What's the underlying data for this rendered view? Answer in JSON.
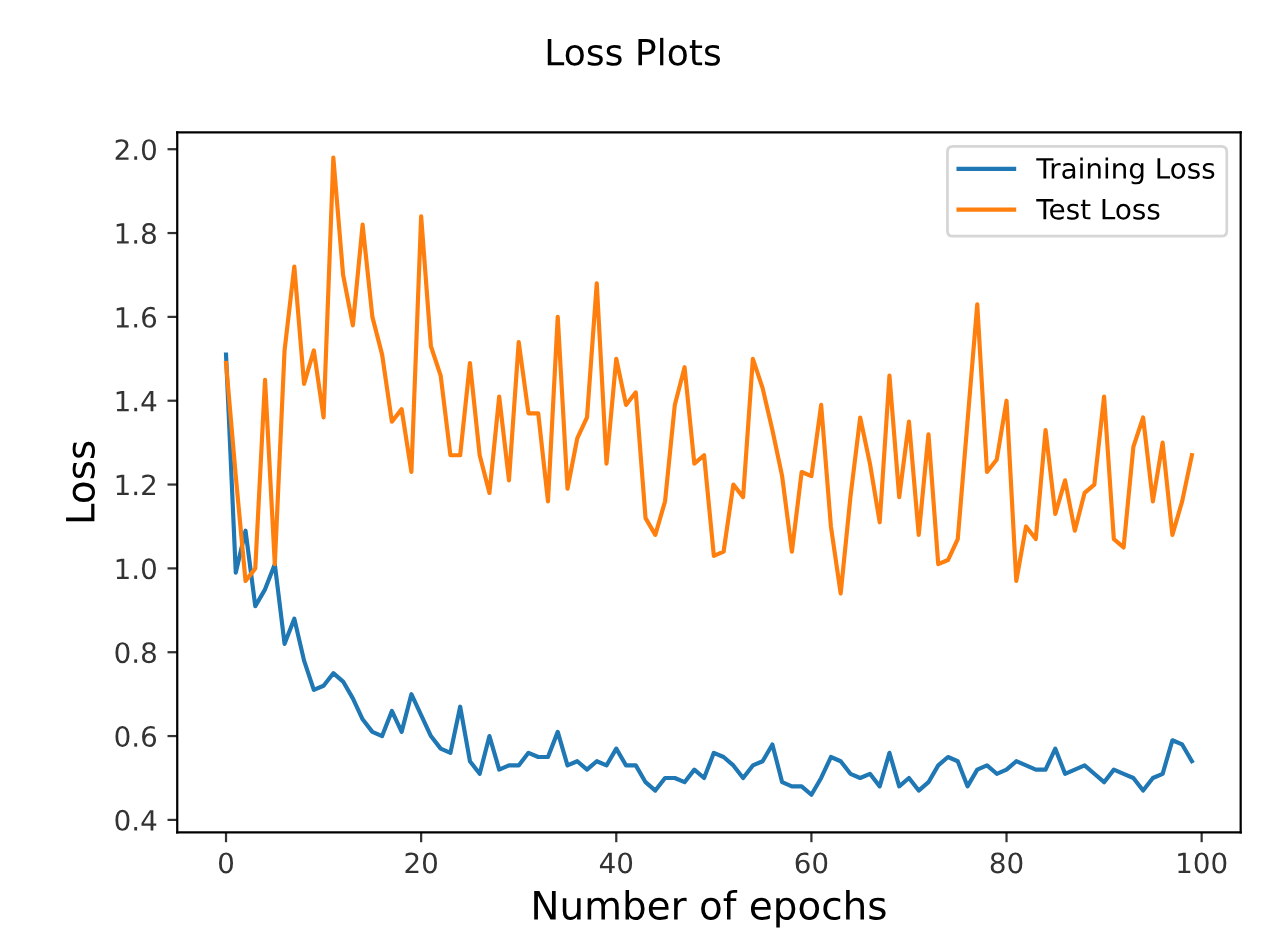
{
  "chart_data": {
    "type": "line",
    "title": "Loss Plots",
    "xlabel": "Number of epochs",
    "ylabel": "Loss",
    "x": [
      0,
      1,
      2,
      3,
      4,
      5,
      6,
      7,
      8,
      9,
      10,
      11,
      12,
      13,
      14,
      15,
      16,
      17,
      18,
      19,
      20,
      21,
      22,
      23,
      24,
      25,
      26,
      27,
      28,
      29,
      30,
      31,
      32,
      33,
      34,
      35,
      36,
      37,
      38,
      39,
      40,
      41,
      42,
      43,
      44,
      45,
      46,
      47,
      48,
      49,
      50,
      51,
      52,
      53,
      54,
      55,
      56,
      57,
      58,
      59,
      60,
      61,
      62,
      63,
      64,
      65,
      66,
      67,
      68,
      69,
      70,
      71,
      72,
      73,
      74,
      75,
      76,
      77,
      78,
      79,
      80,
      81,
      82,
      83,
      84,
      85,
      86,
      87,
      88,
      89,
      90,
      91,
      92,
      93,
      94,
      95,
      96,
      97,
      98,
      99
    ],
    "series": [
      {
        "name": "Training Loss",
        "color": "#1f77b4",
        "values": [
          1.51,
          0.99,
          1.09,
          0.91,
          0.95,
          1.01,
          0.82,
          0.88,
          0.78,
          0.71,
          0.72,
          0.75,
          0.73,
          0.69,
          0.64,
          0.61,
          0.6,
          0.66,
          0.61,
          0.7,
          0.65,
          0.6,
          0.57,
          0.56,
          0.67,
          0.54,
          0.51,
          0.6,
          0.52,
          0.53,
          0.53,
          0.56,
          0.55,
          0.55,
          0.61,
          0.53,
          0.54,
          0.52,
          0.54,
          0.53,
          0.57,
          0.53,
          0.53,
          0.49,
          0.47,
          0.5,
          0.5,
          0.49,
          0.52,
          0.5,
          0.56,
          0.55,
          0.53,
          0.5,
          0.53,
          0.54,
          0.58,
          0.49,
          0.48,
          0.48,
          0.46,
          0.5,
          0.55,
          0.54,
          0.51,
          0.5,
          0.51,
          0.48,
          0.56,
          0.48,
          0.5,
          0.47,
          0.49,
          0.53,
          0.55,
          0.54,
          0.48,
          0.52,
          0.53,
          0.51,
          0.52,
          0.54,
          0.53,
          0.52,
          0.52,
          0.57,
          0.51,
          0.52,
          0.53,
          0.51,
          0.49,
          0.52,
          0.51,
          0.5,
          0.47,
          0.5,
          0.51,
          0.59,
          0.58,
          0.54
        ]
      },
      {
        "name": "Test Loss",
        "color": "#ff7f0e",
        "values": [
          1.49,
          1.22,
          0.97,
          1.0,
          1.45,
          1.01,
          1.52,
          1.72,
          1.44,
          1.52,
          1.36,
          1.98,
          1.7,
          1.58,
          1.82,
          1.6,
          1.51,
          1.35,
          1.38,
          1.23,
          1.84,
          1.53,
          1.46,
          1.27,
          1.27,
          1.49,
          1.27,
          1.18,
          1.41,
          1.21,
          1.54,
          1.37,
          1.37,
          1.16,
          1.6,
          1.19,
          1.31,
          1.36,
          1.68,
          1.25,
          1.5,
          1.39,
          1.42,
          1.12,
          1.08,
          1.16,
          1.39,
          1.48,
          1.25,
          1.27,
          1.03,
          1.04,
          1.2,
          1.17,
          1.5,
          1.43,
          1.33,
          1.22,
          1.04,
          1.23,
          1.22,
          1.39,
          1.1,
          0.94,
          1.17,
          1.36,
          1.25,
          1.11,
          1.46,
          1.17,
          1.35,
          1.08,
          1.32,
          1.01,
          1.02,
          1.07,
          1.35,
          1.63,
          1.23,
          1.26,
          1.4,
          0.97,
          1.1,
          1.07,
          1.33,
          1.13,
          1.21,
          1.09,
          1.18,
          1.2,
          1.41,
          1.07,
          1.05,
          1.29,
          1.36,
          1.16,
          1.3,
          1.08,
          1.16,
          1.27
        ]
      }
    ],
    "xlim": [
      -5,
      104
    ],
    "ylim": [
      0.37,
      2.04
    ],
    "xticks": [
      0,
      20,
      40,
      60,
      80,
      100
    ],
    "yticks": [
      0.4,
      0.6,
      0.8,
      {
        "value": 1,
        "label": "1.0"
      },
      1.2,
      1.4,
      1.6,
      1.8,
      {
        "value": 2,
        "label": "2.0"
      }
    ],
    "grid": false,
    "legend": "top right",
    "marker": "none",
    "line_style": "solid"
  }
}
